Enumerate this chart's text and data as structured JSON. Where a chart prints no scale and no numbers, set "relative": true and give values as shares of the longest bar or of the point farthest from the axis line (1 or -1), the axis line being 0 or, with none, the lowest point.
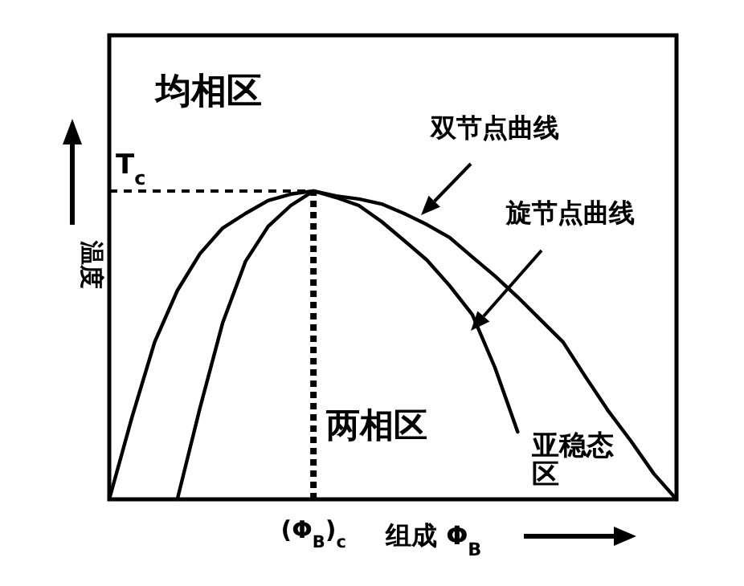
{
  "chart_data": {
    "type": "line",
    "relative": true,
    "xlabel": "组成 Φ$_{B}$",
    "ylabel": "温度",
    "marker": "none",
    "line_style": "solid",
    "categories": [
      null,
      null,
      null,
      null,
      null,
      null,
      null,
      null,
      null,
      null,
      null,
      null,
      null,
      null,
      null,
      null,
      null,
      null,
      null,
      null,
      null,
      null,
      null,
      null,
      null,
      null
    ],
    "annotations": [
      "均相区",
      "两相区",
      "亚稳态区"
    ],
    "ref_lines": [
      {
        "axis": "y",
        "label": "T$_{c}$",
        "line_style": "dashed",
        "color": "#000000"
      },
      {
        "axis": "x",
        "label": "(Φ$_{B}$)$_{c}$",
        "line_style": "dashed",
        "color": "#000000"
      }
    ],
    "series": [
      {
        "name": "双节点曲线",
        "color": "#000000",
        "values": [
          0,
          0.266,
          0.51,
          0.677,
          0.797,
          0.88,
          0.927,
          0.969,
          0.99,
          1,
          0.984,
          0.974,
          0.958,
          0.927,
          0.891,
          0.849,
          0.786,
          0.724,
          0.656,
          0.583,
          0.51,
          0.396,
          0.286,
          0.188,
          0.083,
          0
        ]
      },
      {
        "name": "旋节点曲线",
        "color": "#000000",
        "values": [
          null,
          null,
          null,
          0,
          0.297,
          0.573,
          0.771,
          0.885,
          0.953,
          1,
          0.979,
          0.953,
          0.901,
          0.839,
          0.776,
          0.693,
          0.599,
          0.427,
          0.219,
          null,
          null,
          null,
          null,
          null,
          null,
          null
        ]
      }
    ]
  }
}
